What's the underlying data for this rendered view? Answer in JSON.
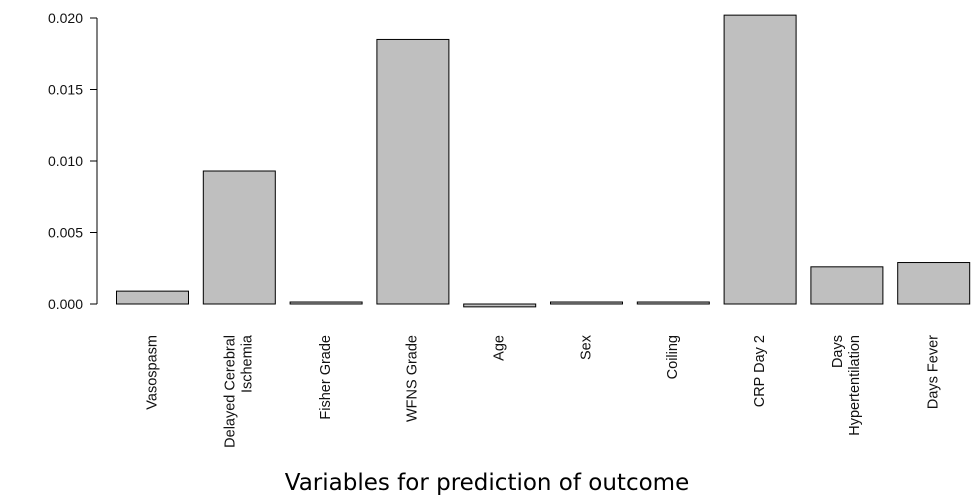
{
  "chart_data": {
    "type": "bar",
    "title": "",
    "xlabel": "Variables for prediction of outcome",
    "ylabel": "",
    "ylim": [
      -0.0002,
      0.0202
    ],
    "yticks": [
      "0.000",
      "0.005",
      "0.010",
      "0.015",
      "0.020"
    ],
    "grid": false,
    "categories": [
      "Vasospasm",
      "Delayed Cerebral Ischemia",
      "Fisher Grade",
      "WFNS Grade",
      "Age",
      "Sex",
      "Coiling",
      "CRP Day 2",
      "Days Hypertentilation",
      "Days Fever"
    ],
    "category_label_lines": [
      [
        "Vasospasm"
      ],
      [
        "Delayed Cerebral",
        "Ischemia"
      ],
      [
        "Fisher Grade"
      ],
      [
        "WFNS Grade"
      ],
      [
        "Age"
      ],
      [
        "Sex"
      ],
      [
        "Coiling"
      ],
      [
        "CRP Day 2"
      ],
      [
        "Days",
        "Hypertentilation"
      ],
      [
        "Days Fever"
      ]
    ],
    "values": [
      0.0009,
      0.0093,
      0.0001,
      0.0185,
      -0.0002,
      0.0001,
      5e-05,
      0.0202,
      0.0026,
      0.0029
    ],
    "bar_color": "#bfbfbf",
    "bar_edge_color": "#000000"
  }
}
